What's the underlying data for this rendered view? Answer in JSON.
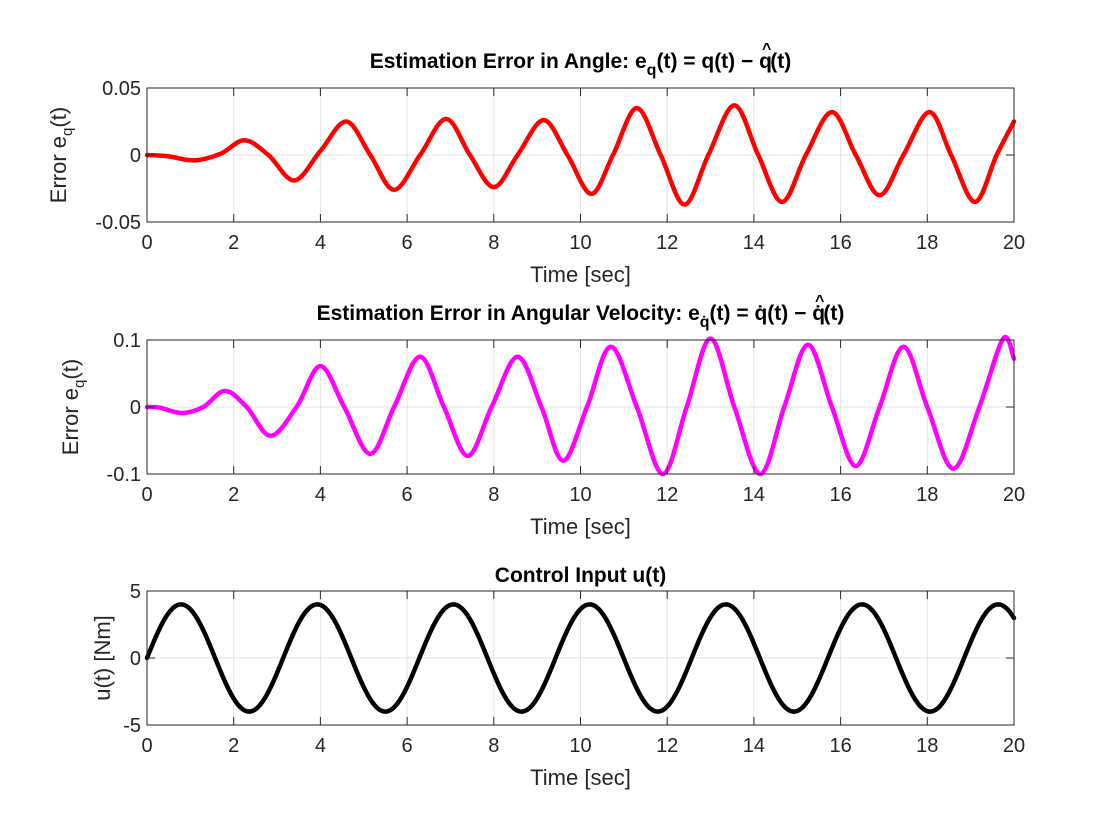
{
  "chart_data": [
    {
      "type": "line",
      "title_parts": {
        "lead": "Estimation Error in Angle: e",
        "lead_sub": "q",
        "middle": "(t) = q(t) − ",
        "hat_char": "q",
        "tail": "(t)"
      },
      "ylabel": "Error e",
      "ylabel_sub": "q",
      "ylabel_tail": "(t)",
      "xlabel": "Time [sec]",
      "xlim": [
        0,
        20
      ],
      "ylim": [
        -0.05,
        0.05
      ],
      "xticks": [
        0,
        2,
        4,
        6,
        8,
        10,
        12,
        14,
        16,
        18,
        20
      ],
      "yticks": [
        -0.05,
        0,
        0.05
      ],
      "yticklabels": [
        "-0.05",
        "0",
        "0.05"
      ],
      "grid": true,
      "series": [
        {
          "color": "#ff0000",
          "x": [
            0,
            0.5,
            1.1,
            1.7,
            2.25,
            2.8,
            3.4,
            4.0,
            4.6,
            5.15,
            5.7,
            6.3,
            6.9,
            7.45,
            8.0,
            8.55,
            9.15,
            9.7,
            10.25,
            10.75,
            11.3,
            11.85,
            12.4,
            12.95,
            13.55,
            14.1,
            14.65,
            15.2,
            15.8,
            16.35,
            16.9,
            17.45,
            18.05,
            18.55,
            19.1,
            19.6,
            20.0
          ],
          "y": [
            0.0,
            -0.001,
            -0.004,
            0.001,
            0.011,
            0.0,
            -0.019,
            0.003,
            0.025,
            0.0,
            -0.026,
            0.0,
            0.027,
            0.0,
            -0.024,
            0.0,
            0.026,
            0.0,
            -0.029,
            0.0,
            0.035,
            0.0,
            -0.037,
            0.0,
            0.037,
            0.0,
            -0.035,
            0.0,
            0.032,
            0.0,
            -0.03,
            0.0,
            0.032,
            0.0,
            -0.035,
            0.0,
            0.025
          ]
        }
      ]
    },
    {
      "type": "line",
      "title_parts": {
        "lead": "Estimation Error in Angular Velocity: e",
        "lead_sub": "q̇",
        "middle": "(t) = q̇(t) − ",
        "hat_char": "q̇",
        "tail": "(t)"
      },
      "ylabel": "Error e",
      "ylabel_sub": "q",
      "ylabel_tail": "(t)",
      "xlabel": "Time [sec]",
      "xlim": [
        0,
        20
      ],
      "ylim": [
        -0.1,
        0.1
      ],
      "xticks": [
        0,
        2,
        4,
        6,
        8,
        10,
        12,
        14,
        16,
        18,
        20
      ],
      "yticks": [
        -0.1,
        0,
        0.1
      ],
      "yticklabels": [
        "-0.1",
        "0",
        "0.1"
      ],
      "grid": true,
      "series": [
        {
          "color": "#ff00ff",
          "x": [
            0,
            0.3,
            0.8,
            1.3,
            1.8,
            2.3,
            2.85,
            3.45,
            4.0,
            4.55,
            5.15,
            5.7,
            6.3,
            6.85,
            7.4,
            7.95,
            8.55,
            9.1,
            9.6,
            10.15,
            10.7,
            11.3,
            11.9,
            12.45,
            13.0,
            13.55,
            14.15,
            14.7,
            15.25,
            15.8,
            16.35,
            16.9,
            17.45,
            18.0,
            18.6,
            19.2,
            19.75,
            20.0
          ],
          "y": [
            0.0,
            -0.001,
            -0.009,
            0.0,
            0.024,
            0.0,
            -0.043,
            0.0,
            0.061,
            0.0,
            -0.07,
            0.0,
            0.075,
            0.0,
            -0.073,
            0.0,
            0.075,
            0.0,
            -0.08,
            0.0,
            0.09,
            0.0,
            -0.1,
            0.0,
            0.102,
            0.0,
            -0.1,
            0.0,
            0.093,
            0.0,
            -0.088,
            0.0,
            0.09,
            0.0,
            -0.092,
            0.0,
            0.102,
            0.072
          ]
        }
      ]
    },
    {
      "type": "line",
      "title": "Control Input u(t)",
      "ylabel": "u(t) [Nm]",
      "xlabel": "Time [sec]",
      "xlim": [
        0,
        20
      ],
      "ylim": [
        -5,
        5
      ],
      "xticks": [
        0,
        2,
        4,
        6,
        8,
        10,
        12,
        14,
        16,
        18,
        20
      ],
      "yticks": [
        -5,
        0,
        5
      ],
      "yticklabels": [
        "-5",
        "0",
        "5"
      ],
      "grid": true,
      "series": [
        {
          "color": "#000000",
          "amplitude": 4,
          "omega": 2,
          "x_start": 0,
          "x_end": 20
        }
      ]
    }
  ]
}
